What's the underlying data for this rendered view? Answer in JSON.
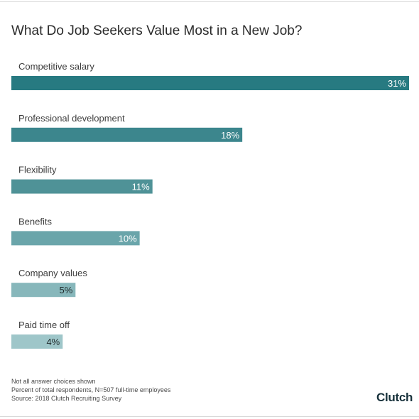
{
  "chart_data": {
    "type": "bar",
    "orientation": "horizontal",
    "title": "What Do Job Seekers Value Most in a New Job?",
    "categories": [
      "Competitive salary",
      "Professional development",
      "Flexibility",
      "Benefits",
      "Company values",
      "Paid time off"
    ],
    "values": [
      31,
      18,
      11,
      10,
      5,
      4
    ],
    "value_labels": [
      "31%",
      "18%",
      "11%",
      "10%",
      "5%",
      "4%"
    ],
    "xlim": [
      0,
      31
    ],
    "grid": false,
    "colors": [
      "#277a81",
      "#3c868d",
      "#4f9297",
      "#6aa5aa",
      "#87b7bb",
      "#9ec6c9"
    ],
    "label_colors": [
      "#ffffff",
      "#ffffff",
      "#ffffff",
      "#ffffff",
      "#1f2a2b",
      "#1f2a2b"
    ]
  },
  "footnotes": [
    "Not all answer choices shown",
    "Percent of total respondents, N=507 full-time employees",
    "Source: 2018 Clutch Recruiting Survey"
  ],
  "brand": {
    "logo_text_main": "Clutch",
    "logo_text_dot": "",
    "logo_color": "#17313b",
    "logo_dot_color": "#e3472f"
  }
}
